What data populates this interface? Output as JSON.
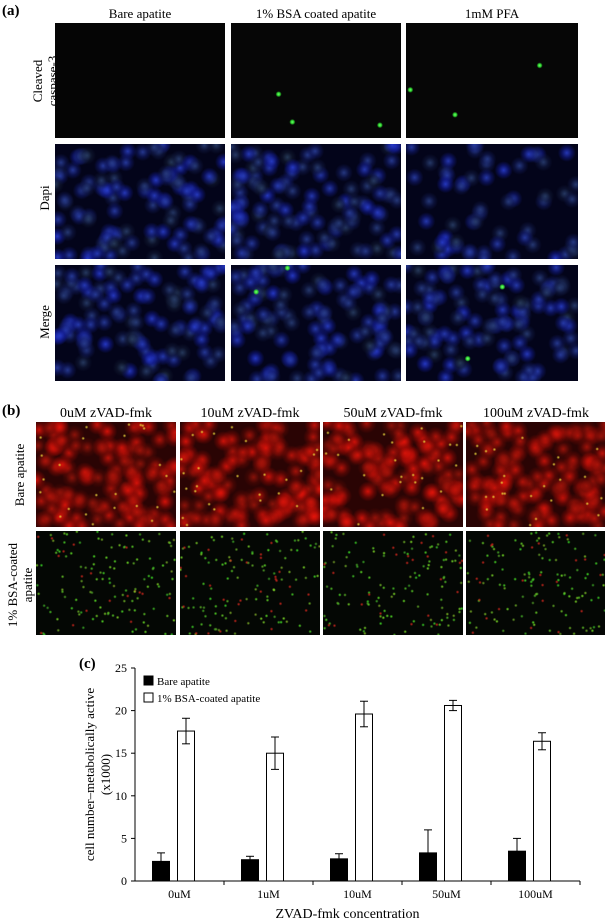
{
  "panel_a": {
    "label": "(a)",
    "columns": [
      "Bare apatite",
      "1% BSA coated apatite",
      "1mM PFA"
    ],
    "rows": [
      "Cleaved\ncaspase-3",
      "Dapi",
      "Merge"
    ]
  },
  "panel_b": {
    "label": "(b)",
    "columns": [
      "0uM zVAD-fmk",
      "10uM zVAD-fmk",
      "50uM zVAD-fmk",
      "100uM zVAD-fmk"
    ],
    "rows": [
      "Bare apatite",
      "1% BSA-coated\napatite"
    ]
  },
  "panel_c": {
    "label": "(c)"
  },
  "chart_data": {
    "type": "bar",
    "title": "",
    "xlabel": "ZVAD-fmk concentration",
    "ylabel": "cell number–metabolically active (x1000)",
    "ylim": [
      0,
      25
    ],
    "yticks": [
      0,
      5,
      10,
      15,
      20,
      25
    ],
    "categories": [
      "0uM",
      "1uM",
      "10uM",
      "50uM",
      "100uM"
    ],
    "series": [
      {
        "name": "Bare apatite",
        "color": "#000000",
        "values": [
          2.3,
          2.5,
          2.6,
          3.3,
          3.5
        ],
        "errors": [
          1.0,
          0.4,
          0.6,
          2.7,
          1.5
        ]
      },
      {
        "name": "1% BSA-coated apatite",
        "color": "#ffffff",
        "values": [
          17.6,
          15.0,
          19.6,
          20.6,
          16.4
        ],
        "errors": [
          1.5,
          1.9,
          1.5,
          0.6,
          1.0
        ]
      }
    ],
    "legend": "top-left",
    "grid": false
  }
}
